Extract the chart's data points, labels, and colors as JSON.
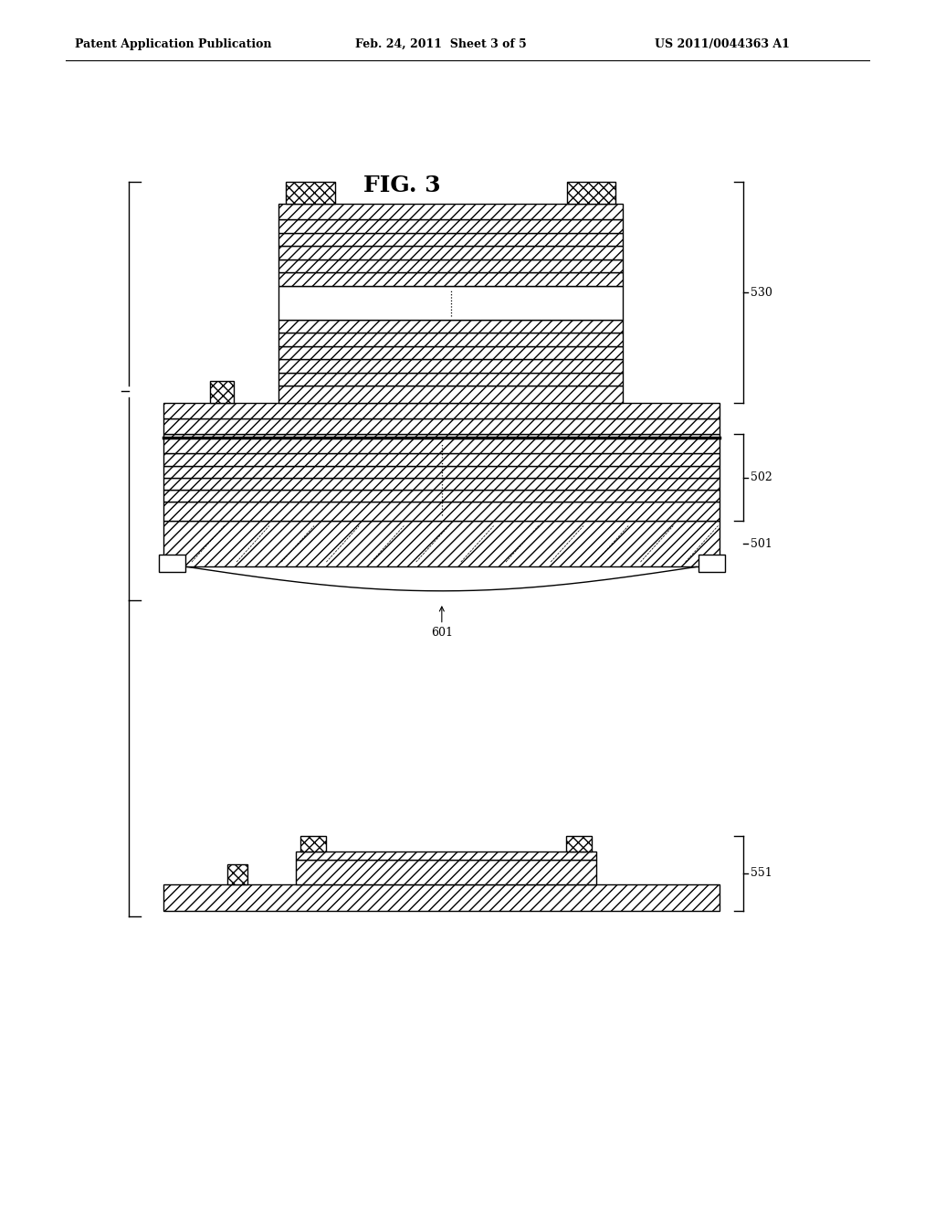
{
  "bg_color": "#ffffff",
  "header_left": "Patent Application Publication",
  "header_mid": "Feb. 24, 2011  Sheet 3 of 5",
  "header_right": "US 2011/0044363 A1",
  "fig_label": "FIG. 3",
  "line_color": "#000000"
}
